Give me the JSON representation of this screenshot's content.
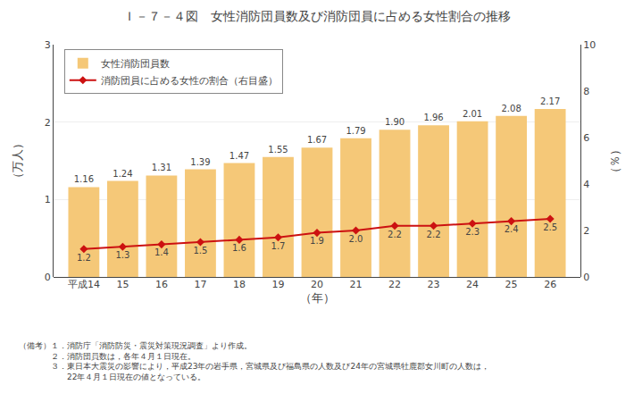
{
  "chart_data": {
    "type": "bar",
    "title": "Ｉ－７－４図　女性消防団員数及び消防団員に占める女性割合の推移",
    "categories": [
      "平成14",
      "15",
      "16",
      "17",
      "18",
      "19",
      "20",
      "21",
      "22",
      "23",
      "24",
      "25",
      "26"
    ],
    "series": [
      {
        "name": "女性消防団員数",
        "type": "bar",
        "color": "#f5c878",
        "values": [
          1.16,
          1.24,
          1.31,
          1.39,
          1.47,
          1.55,
          1.67,
          1.79,
          1.9,
          1.96,
          2.01,
          2.08,
          2.17
        ],
        "value_labels": [
          "1.16",
          "1.24",
          "1.31",
          "1.39",
          "1.47",
          "1.55",
          "1.67",
          "1.79",
          "1.90",
          "1.96",
          "2.01",
          "2.08",
          "2.17"
        ]
      },
      {
        "name": "消防団員に占める女性の割合（右目盛）",
        "type": "line",
        "axis": "y2",
        "color": "#cc1111",
        "marker": "diamond",
        "values": [
          1.2,
          1.3,
          1.4,
          1.5,
          1.6,
          1.7,
          1.9,
          2.0,
          2.2,
          2.2,
          2.3,
          2.4,
          2.5
        ],
        "value_labels": [
          "1.2",
          "1.3",
          "1.4",
          "1.5",
          "1.6",
          "1.7",
          "1.9",
          "2.0",
          "2.2",
          "2.2",
          "2.3",
          "2.4",
          "2.5"
        ]
      }
    ],
    "xlabel": "（年）",
    "ylabel": "（万人）",
    "y2label": "（％）",
    "ylim": [
      0,
      3
    ],
    "yticks": [
      0,
      1,
      2,
      3
    ],
    "y2lim": [
      0,
      10
    ],
    "y2ticks": [
      0,
      2,
      4,
      6,
      8,
      10
    ],
    "grid": true,
    "legend": "upper left",
    "data_labels": true,
    "annotations": [
      "（備考）１．消防庁「消防防災・震災対策現況調査」より作成。",
      "　　　　２．消防団員数は，各年４月１日現在。",
      "　　　　３．東日本大震災の影響により，平成23年の岩手県，宮城県及び福島県の人数及び24年の宮城県牡鹿郡女川町の人数は，",
      "　　　　　　22年４月１日現在の値となっている。"
    ]
  }
}
